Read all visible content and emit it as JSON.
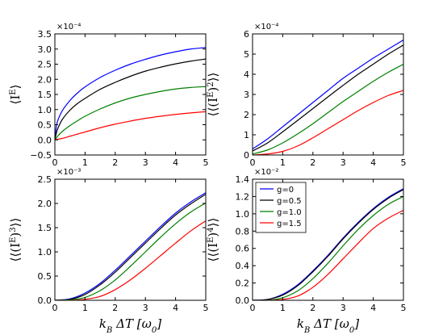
{
  "chart_data": [
    {
      "type": "line",
      "ylabel": "⟨I^E⟩",
      "xlabel": "",
      "exponent_label": "×10⁻⁴",
      "xlim": [
        0,
        5
      ],
      "ylim": [
        -0.5,
        3.5
      ],
      "xticks": [
        "0",
        "1",
        "2",
        "3",
        "4",
        "5"
      ],
      "yticks": [
        "−0.5",
        "0.0",
        "0.5",
        "1.0",
        "1.5",
        "2.0",
        "2.5",
        "3.0",
        "3.5"
      ],
      "series": [
        {
          "name": "g=0",
          "color": "#0000ff",
          "x": [
            0,
            0.05,
            0.1,
            0.25,
            0.5,
            0.75,
            1,
            1.5,
            2,
            2.5,
            3,
            3.5,
            4,
            4.5,
            5
          ],
          "values": [
            0,
            0.45,
            0.65,
            0.97,
            1.3,
            1.55,
            1.75,
            2.06,
            2.3,
            2.5,
            2.66,
            2.8,
            2.91,
            3.0,
            3.05
          ]
        },
        {
          "name": "g=0.5",
          "color": "#000000",
          "x": [
            0,
            0.05,
            0.1,
            0.25,
            0.5,
            0.75,
            1,
            1.5,
            2,
            2.5,
            3,
            3.5,
            4,
            4.5,
            5
          ],
          "values": [
            0,
            0.22,
            0.38,
            0.68,
            0.98,
            1.2,
            1.37,
            1.67,
            1.9,
            2.1,
            2.27,
            2.4,
            2.51,
            2.6,
            2.67
          ]
        },
        {
          "name": "g=1.0",
          "color": "#008000",
          "x": [
            0,
            0.05,
            0.1,
            0.25,
            0.5,
            0.75,
            1,
            1.5,
            2,
            2.5,
            3,
            3.5,
            4,
            4.5,
            5
          ],
          "values": [
            0,
            0.06,
            0.13,
            0.28,
            0.47,
            0.63,
            0.78,
            1.02,
            1.22,
            1.38,
            1.5,
            1.6,
            1.68,
            1.73,
            1.76
          ]
        },
        {
          "name": "g=1.5",
          "color": "#ff0000",
          "x": [
            0,
            0.05,
            0.1,
            0.25,
            0.5,
            0.75,
            1,
            1.5,
            2,
            2.5,
            3,
            3.5,
            4,
            4.5,
            5
          ],
          "values": [
            0,
            0.01,
            0.02,
            0.05,
            0.12,
            0.19,
            0.26,
            0.4,
            0.52,
            0.62,
            0.71,
            0.78,
            0.84,
            0.89,
            0.93
          ]
        }
      ]
    },
    {
      "type": "line",
      "ylabel": "⟨⟨(I^E)²⟩⟩",
      "xlabel": "",
      "exponent_label": "×10⁻⁴",
      "xlim": [
        0,
        5
      ],
      "ylim": [
        0,
        6
      ],
      "xticks": [
        "0",
        "1",
        "2",
        "3",
        "4",
        "5"
      ],
      "yticks": [
        "0",
        "1",
        "2",
        "3",
        "4",
        "5",
        "6"
      ],
      "series": [
        {
          "name": "g=0",
          "color": "#0000ff",
          "x": [
            0,
            0.5,
            1,
            1.5,
            2,
            2.5,
            3,
            3.5,
            4,
            4.5,
            5
          ],
          "values": [
            0.3,
            0.8,
            1.4,
            2.0,
            2.6,
            3.2,
            3.8,
            4.3,
            4.8,
            5.25,
            5.7
          ]
        },
        {
          "name": "g=0.5",
          "color": "#000000",
          "x": [
            0,
            0.5,
            1,
            1.5,
            2,
            2.5,
            3,
            3.5,
            4,
            4.5,
            5
          ],
          "values": [
            0.2,
            0.6,
            1.15,
            1.72,
            2.3,
            2.88,
            3.45,
            4.0,
            4.5,
            5.0,
            5.45
          ]
        },
        {
          "name": "g=1.0",
          "color": "#008000",
          "x": [
            0,
            0.5,
            1,
            1.5,
            2,
            2.5,
            3,
            3.5,
            4,
            4.5,
            5
          ],
          "values": [
            0.05,
            0.25,
            0.6,
            1.05,
            1.55,
            2.1,
            2.65,
            3.15,
            3.65,
            4.1,
            4.5
          ]
        },
        {
          "name": "g=1.5",
          "color": "#ff0000",
          "x": [
            0,
            0.5,
            1,
            1.5,
            2,
            2.5,
            3,
            3.5,
            4,
            4.5,
            5
          ],
          "values": [
            0.0,
            0.05,
            0.18,
            0.45,
            0.85,
            1.3,
            1.75,
            2.2,
            2.6,
            2.95,
            3.2
          ]
        }
      ]
    },
    {
      "type": "line",
      "ylabel": "⟨⟨(I^E)³⟩⟩",
      "xlabel": "k_B ΔT [ω₀]",
      "exponent_label": "×10⁻³",
      "xlim": [
        0,
        5
      ],
      "ylim": [
        0,
        2.5
      ],
      "xticks": [
        "0",
        "1",
        "2",
        "3",
        "4",
        "5"
      ],
      "yticks": [
        "0.0",
        "0.5",
        "1.0",
        "1.5",
        "2.0",
        "2.5"
      ],
      "series": [
        {
          "name": "g=0",
          "color": "#0000ff",
          "x": [
            0,
            0.5,
            1,
            1.5,
            2,
            2.5,
            3,
            3.5,
            4,
            4.5,
            5
          ],
          "values": [
            0.0,
            0.03,
            0.15,
            0.35,
            0.62,
            0.92,
            1.22,
            1.52,
            1.8,
            2.03,
            2.22
          ]
        },
        {
          "name": "g=0.5",
          "color": "#000000",
          "x": [
            0,
            0.5,
            1,
            1.5,
            2,
            2.5,
            3,
            3.5,
            4,
            4.5,
            5
          ],
          "values": [
            0.0,
            0.02,
            0.12,
            0.32,
            0.58,
            0.88,
            1.18,
            1.48,
            1.76,
            1.99,
            2.19
          ]
        },
        {
          "name": "g=1.0",
          "color": "#008000",
          "x": [
            0,
            0.5,
            1,
            1.5,
            2,
            2.5,
            3,
            3.5,
            4,
            4.5,
            5
          ],
          "values": [
            0.0,
            0.01,
            0.06,
            0.2,
            0.42,
            0.7,
            1.0,
            1.3,
            1.58,
            1.82,
            2.01
          ]
        },
        {
          "name": "g=1.5",
          "color": "#ff0000",
          "x": [
            0,
            0.5,
            1,
            1.5,
            2,
            2.5,
            3,
            3.5,
            4,
            4.5,
            5
          ],
          "values": [
            0.0,
            0.0,
            0.02,
            0.08,
            0.22,
            0.42,
            0.66,
            0.92,
            1.18,
            1.43,
            1.64
          ]
        }
      ]
    },
    {
      "type": "line",
      "ylabel": "⟨⟨(I^E)⁴⟩⟩",
      "xlabel": "k_B ΔT [ω₀]",
      "exponent_label": "×10⁻²",
      "xlim": [
        0,
        5
      ],
      "ylim": [
        0,
        1.4
      ],
      "xticks": [
        "0",
        "1",
        "2",
        "3",
        "4",
        "5"
      ],
      "yticks": [
        "0.0",
        "0.2",
        "0.4",
        "0.6",
        "0.8",
        "1.0",
        "1.2",
        "1.4"
      ],
      "legend": {
        "position": "top-left",
        "entries": [
          "g=0",
          "g=0.5",
          "g=1.0",
          "g=1.5"
        ]
      },
      "series": [
        {
          "name": "g=0",
          "color": "#0000ff",
          "x": [
            0,
            0.5,
            1,
            1.5,
            2,
            2.5,
            3,
            3.5,
            4,
            4.5,
            5
          ],
          "values": [
            0.0,
            0.01,
            0.07,
            0.18,
            0.34,
            0.52,
            0.72,
            0.9,
            1.06,
            1.19,
            1.29
          ]
        },
        {
          "name": "g=0.5",
          "color": "#000000",
          "x": [
            0,
            0.5,
            1,
            1.5,
            2,
            2.5,
            3,
            3.5,
            4,
            4.5,
            5
          ],
          "values": [
            0.0,
            0.01,
            0.06,
            0.17,
            0.33,
            0.51,
            0.71,
            0.89,
            1.05,
            1.18,
            1.28
          ]
        },
        {
          "name": "g=1.0",
          "color": "#008000",
          "x": [
            0,
            0.5,
            1,
            1.5,
            2,
            2.5,
            3,
            3.5,
            4,
            4.5,
            5
          ],
          "values": [
            0.0,
            0.0,
            0.03,
            0.11,
            0.25,
            0.43,
            0.63,
            0.82,
            0.98,
            1.11,
            1.2
          ]
        },
        {
          "name": "g=1.5",
          "color": "#ff0000",
          "x": [
            0,
            0.5,
            1,
            1.5,
            2,
            2.5,
            3,
            3.5,
            4,
            4.5,
            5
          ],
          "values": [
            0.0,
            0.0,
            0.01,
            0.05,
            0.15,
            0.3,
            0.48,
            0.66,
            0.83,
            0.95,
            1.04
          ]
        }
      ]
    }
  ]
}
